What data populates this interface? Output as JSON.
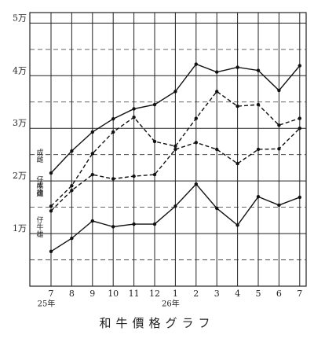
{
  "chart_data": {
    "type": "line",
    "title": "和牛價格グラフ",
    "categories": [
      "7",
      "8",
      "9",
      "10",
      "11",
      "12",
      "1",
      "2",
      "3",
      "4",
      "5",
      "6",
      "7"
    ],
    "years": [
      "25年",
      null,
      null,
      null,
      null,
      null,
      "26年",
      null,
      null,
      null,
      null,
      null,
      null
    ],
    "ylim": [
      0,
      5.2
    ],
    "yticks": [
      {
        "value": 1,
        "label": "1万"
      },
      {
        "value": 2,
        "label": "2万"
      },
      {
        "value": 3,
        "label": "3万"
      },
      {
        "value": 4,
        "label": "4万"
      },
      {
        "value": 5,
        "label": "5万"
      }
    ],
    "minor_yticks": [
      0.5,
      1.5,
      2.5,
      3.5,
      4.5
    ],
    "grid": true,
    "series": [
      {
        "name": "成雌",
        "color": "#111111",
        "dashed": false,
        "values": [
          2.15,
          2.57,
          2.93,
          3.18,
          3.37,
          3.45,
          3.7,
          4.22,
          4.07,
          4.16,
          4.1,
          3.72,
          4.19
        ]
      },
      {
        "name": "成雄",
        "color": "#111111",
        "dashed": true,
        "values": [
          1.52,
          1.91,
          2.52,
          2.93,
          3.21,
          2.75,
          2.66,
          3.19,
          3.7,
          3.42,
          3.45,
          3.06,
          3.19
        ]
      },
      {
        "name": "仔牛雌",
        "color": "#111111",
        "dashed": true,
        "values": [
          1.43,
          1.82,
          2.12,
          2.04,
          2.09,
          2.12,
          2.6,
          2.73,
          2.6,
          2.33,
          2.6,
          2.61,
          3.0
        ]
      },
      {
        "name": "仔牛雄",
        "color": "#111111",
        "dashed": false,
        "values": [
          0.66,
          0.91,
          1.24,
          1.13,
          1.18,
          1.18,
          1.52,
          1.94,
          1.48,
          1.16,
          1.7,
          1.54,
          1.69
        ]
      }
    ]
  }
}
